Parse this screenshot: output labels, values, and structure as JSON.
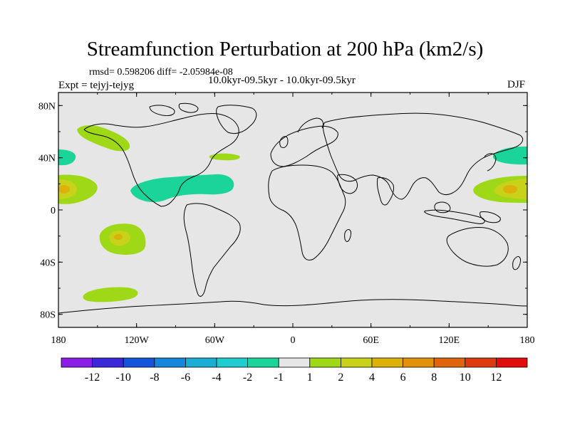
{
  "title": "Streamfunction Perturbation at 200 hPa (km2/s)",
  "stats": "rmsd= 0.598206 diff= -2.05984e-08",
  "experiment": "Expt = tejyj-tejyg",
  "period": "10.0kyr-09.5kyr - 10.0kyr-09.5kyr",
  "season": "DJF",
  "colors": {
    "ocean_land_background": "#e6e6e6",
    "band_neg1_to_neg2": "#1bd49a",
    "band_1_to_2": "#9ed816",
    "band_2_to_4": "#c8d21a",
    "band_4_to_6": "#dcb20a"
  },
  "map": {
    "lat_labels": [
      "80N",
      "40N",
      "0",
      "40S",
      "80S"
    ],
    "lon_labels": [
      "180",
      "120W",
      "60W",
      "0",
      "60E",
      "120E",
      "180"
    ]
  },
  "colorbar": {
    "labels": [
      "-12",
      "-10",
      "-8",
      "-6",
      "-4",
      "-2",
      "-1",
      "1",
      "2",
      "4",
      "6",
      "8",
      "10",
      "12"
    ],
    "colors": [
      "#8a1ee6",
      "#3b28d8",
      "#1555dc",
      "#1586d9",
      "#1aaed6",
      "#1fcdd0",
      "#1bd49a",
      "#e6e6e6",
      "#9ed816",
      "#c8d21a",
      "#dcb20a",
      "#e2920a",
      "#e0640c",
      "#de3a10",
      "#e20c0c"
    ]
  }
}
